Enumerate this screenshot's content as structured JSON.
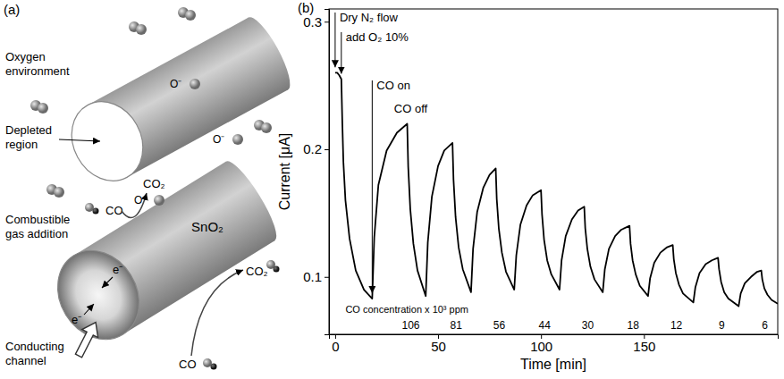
{
  "diagram": {
    "panel_label": "(a)",
    "oxygen_environment": "Oxygen environment",
    "ion": "O⁻",
    "depleted_region": "Depleted region",
    "gas_addition": "Combustible gas addition",
    "co": "CO",
    "co2": "CO₂",
    "electron": "e⁻",
    "material": "SnO₂",
    "conducting_channel": "Conducting channel"
  },
  "chart_data": {
    "type": "line",
    "panel_label": "(b)",
    "x_label": "Time [min]",
    "y_label": "Current [μA]",
    "color": "#000000",
    "x": [
      0,
      1,
      2,
      3,
      3.5,
      4,
      5,
      7,
      10,
      14,
      18,
      19,
      21,
      25,
      30,
      35,
      35.5,
      36.5,
      38,
      40,
      44,
      45,
      47,
      50,
      53,
      57,
      57.5,
      58.5,
      60,
      62,
      66,
      67,
      69,
      72,
      75,
      78,
      78.5,
      79.5,
      81,
      83,
      87,
      88,
      90,
      93,
      96,
      100,
      100.5,
      101.5,
      103,
      105,
      109,
      110,
      112,
      115,
      118,
      121,
      121.5,
      122.5,
      124,
      126,
      130,
      131,
      133,
      136,
      139,
      143,
      143.5,
      144.5,
      146,
      148,
      152,
      153,
      155,
      158,
      161,
      164,
      164.5,
      165.5,
      167,
      169,
      174,
      175,
      177,
      180,
      183,
      186,
      186.5,
      187.5,
      189,
      191,
      196,
      197,
      199,
      202,
      205,
      207,
      207.5,
      208.5,
      210,
      212,
      215
    ],
    "values": [
      0.26,
      0.26,
      0.258,
      0.255,
      0.22,
      0.19,
      0.16,
      0.13,
      0.105,
      0.09,
      0.083,
      0.131,
      0.172,
      0.199,
      0.213,
      0.22,
      0.186,
      0.153,
      0.126,
      0.105,
      0.085,
      0.127,
      0.163,
      0.187,
      0.199,
      0.205,
      0.176,
      0.147,
      0.123,
      0.106,
      0.088,
      0.122,
      0.151,
      0.17,
      0.18,
      0.185,
      0.161,
      0.138,
      0.119,
      0.104,
      0.09,
      0.117,
      0.141,
      0.156,
      0.164,
      0.168,
      0.149,
      0.129,
      0.113,
      0.102,
      0.09,
      0.113,
      0.132,
      0.145,
      0.152,
      0.155,
      0.138,
      0.122,
      0.108,
      0.098,
      0.088,
      0.106,
      0.122,
      0.132,
      0.137,
      0.14,
      0.126,
      0.113,
      0.102,
      0.093,
      0.085,
      0.099,
      0.111,
      0.119,
      0.123,
      0.125,
      0.114,
      0.103,
      0.094,
      0.087,
      0.08,
      0.092,
      0.103,
      0.11,
      0.113,
      0.115,
      0.106,
      0.096,
      0.088,
      0.083,
      0.077,
      0.087,
      0.095,
      0.1,
      0.104,
      0.105,
      0.098,
      0.091,
      0.086,
      0.082,
      0.079
    ],
    "xlim": [
      -3,
      215
    ],
    "ylim": [
      0.055,
      0.31
    ],
    "xticks": [
      0,
      50,
      100,
      150
    ],
    "yticks": [
      0.1,
      0.2,
      0.3
    ],
    "annotations": [
      {
        "text": "Dry N₂ flow",
        "x": 0
      },
      {
        "text": "add O₂ 10%",
        "x": 3
      },
      {
        "text": "CO on",
        "x": 18
      },
      {
        "text": "CO off",
        "x": 35
      }
    ],
    "concentration_label": "CO concentration x 10³ ppm",
    "co_concentrations": [
      106,
      81,
      56,
      44,
      30,
      18,
      12,
      9,
      6
    ]
  }
}
